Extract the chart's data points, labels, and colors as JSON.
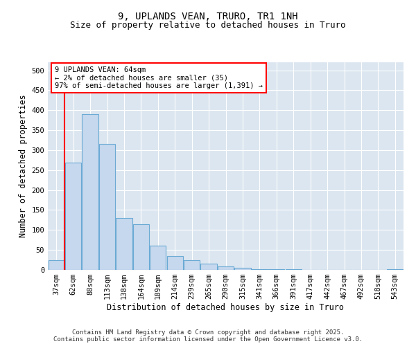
{
  "title_line1": "9, UPLANDS VEAN, TRURO, TR1 1NH",
  "title_line2": "Size of property relative to detached houses in Truro",
  "xlabel": "Distribution of detached houses by size in Truro",
  "ylabel": "Number of detached properties",
  "categories": [
    "37sqm",
    "62sqm",
    "88sqm",
    "113sqm",
    "138sqm",
    "164sqm",
    "189sqm",
    "214sqm",
    "239sqm",
    "265sqm",
    "290sqm",
    "315sqm",
    "341sqm",
    "366sqm",
    "391sqm",
    "417sqm",
    "442sqm",
    "467sqm",
    "492sqm",
    "518sqm",
    "543sqm"
  ],
  "values": [
    25,
    268,
    390,
    315,
    130,
    115,
    60,
    35,
    25,
    15,
    8,
    5,
    2,
    1,
    1,
    0,
    0,
    0,
    0,
    0,
    1
  ],
  "bar_color": "#c5d8ee",
  "bar_edge_color": "#6aaad4",
  "vline_color": "red",
  "vline_x": 0.5,
  "annotation_text": "9 UPLANDS VEAN: 64sqm\n← 2% of detached houses are smaller (35)\n97% of semi-detached houses are larger (1,391) →",
  "annotation_box_color": "white",
  "annotation_box_edge_color": "red",
  "ylim": [
    0,
    520
  ],
  "yticks": [
    0,
    50,
    100,
    150,
    200,
    250,
    300,
    350,
    400,
    450,
    500
  ],
  "background_color": "#dce6f0",
  "grid_color": "#ffffff",
  "footer_text": "Contains HM Land Registry data © Crown copyright and database right 2025.\nContains public sector information licensed under the Open Government Licence v3.0.",
  "title_fontsize": 10,
  "subtitle_fontsize": 9,
  "axis_label_fontsize": 8.5,
  "tick_fontsize": 7.5,
  "annotation_fontsize": 7.5,
  "footer_fontsize": 6.5
}
